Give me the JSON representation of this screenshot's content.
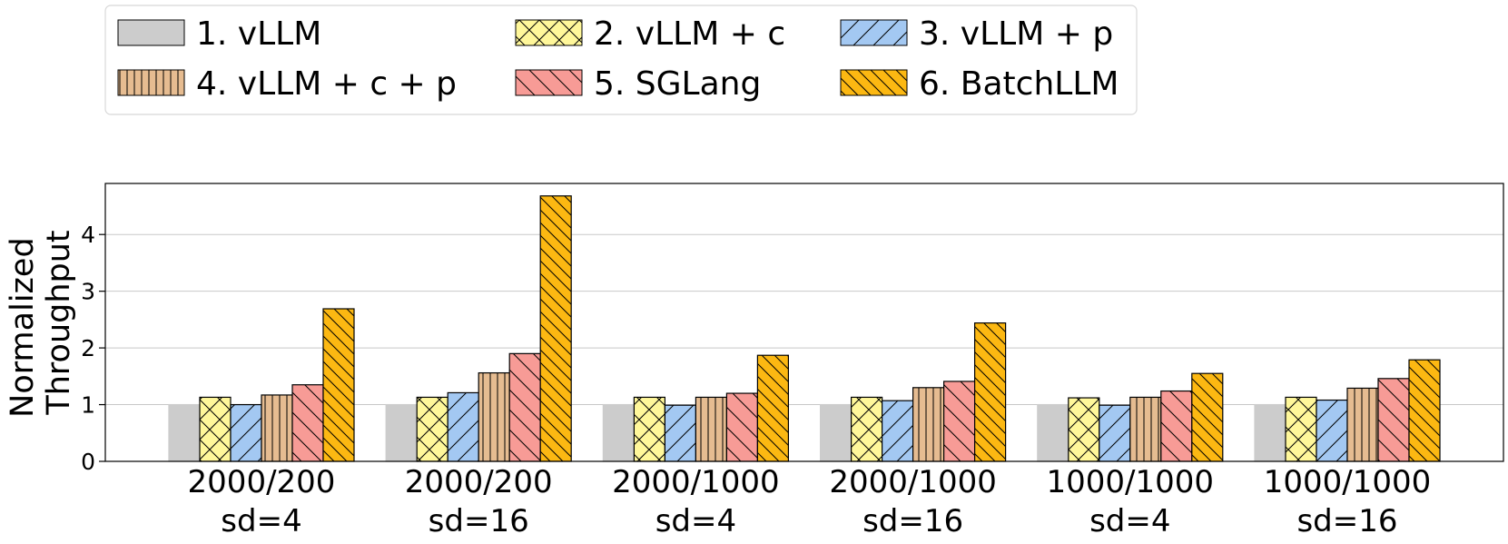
{
  "chart_data": {
    "type": "bar",
    "title": "",
    "xlabel": "",
    "ylabel": "Normalized Throughput",
    "ylabel_lines": [
      "Normalized",
      "Throughput"
    ],
    "ylim": [
      0,
      4.9
    ],
    "yticks": [
      0,
      1,
      2,
      3,
      4
    ],
    "grid": true,
    "legend_position": "top-left",
    "categories": [
      [
        "2000/200",
        "sd=4"
      ],
      [
        "2000/200",
        "sd=16"
      ],
      [
        "2000/1000",
        "sd=4"
      ],
      [
        "2000/1000",
        "sd=16"
      ],
      [
        "1000/1000",
        "sd=4"
      ],
      [
        "1000/1000",
        "sd=16"
      ]
    ],
    "series": [
      {
        "name": "1. vLLM",
        "color": "#cccccc",
        "hatch": "none",
        "values": [
          1.0,
          1.0,
          1.0,
          1.0,
          1.0,
          1.0
        ]
      },
      {
        "name": "2. vLLM + c",
        "color": "#fff79a",
        "hatch": "cross",
        "values": [
          1.13,
          1.13,
          1.13,
          1.13,
          1.12,
          1.13
        ]
      },
      {
        "name": "3. vLLM + p",
        "color": "#a3c8f2",
        "hatch": "slash",
        "values": [
          1.0,
          1.21,
          0.99,
          1.07,
          0.99,
          1.08
        ]
      },
      {
        "name": "4. vLLM + c + p",
        "color": "#e6bc91",
        "hatch": "vertical",
        "values": [
          1.17,
          1.56,
          1.13,
          1.3,
          1.13,
          1.29
        ]
      },
      {
        "name": "5. SGLang",
        "color": "#f79b96",
        "hatch": "backslash",
        "values": [
          1.35,
          1.9,
          1.2,
          1.41,
          1.24,
          1.46
        ]
      },
      {
        "name": "6. BatchLLM",
        "color": "#fcb812",
        "hatch": "dense-backslash",
        "values": [
          2.69,
          4.68,
          1.87,
          2.44,
          1.55,
          1.79
        ]
      }
    ]
  }
}
